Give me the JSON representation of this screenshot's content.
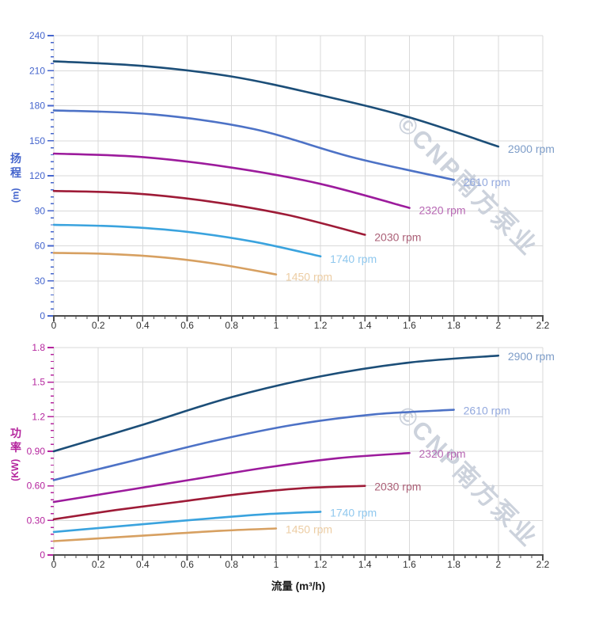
{
  "axes": {
    "flow_title": "流量 (m³/h)",
    "head_char1": "扬",
    "head_char2": "程",
    "head_unit": "(m)",
    "power_char1": "功",
    "power_char2": "率",
    "power_unit": "(KW)"
  },
  "watermark": {
    "text": "©CNP南方泵业"
  },
  "colors": {
    "head_axis": "#4565cd",
    "power_axis": "#b5259e",
    "x_tick_label": "#333333",
    "grid": "#d9d9d9",
    "axis_line": "#4c4c4c",
    "watermark": "#ccd2dc",
    "background": "#ffffff"
  },
  "chart_data": [
    {
      "type": "line",
      "title": "",
      "xlabel": "流量 (m³/h)",
      "ylabel": "扬程 (m)",
      "xlim": [
        0,
        2.2
      ],
      "ylim": [
        0,
        240
      ],
      "grid": true,
      "legend_position": "curve-end-labels",
      "xtick_labels": [
        "0",
        "0.2",
        "0.4",
        "0.6",
        "0.8",
        "1",
        "1.2",
        "1.4",
        "1.6",
        "1.8",
        "2",
        "2.2"
      ],
      "ytick_labels": [
        "0",
        "30",
        "60",
        "90",
        "120",
        "150",
        "180",
        "210",
        "240"
      ],
      "series": [
        {
          "name": "2900 rpm",
          "color": "#1c4e78",
          "label_color": "#7e9dc8",
          "x": [
            0,
            0.4,
            0.8,
            1.2,
            1.6,
            2.0
          ],
          "y": [
            218,
            214,
            205,
            189,
            170,
            145
          ]
        },
        {
          "name": "2610 rpm",
          "color": "#4d72c6",
          "label_color": "#93a9de",
          "x": [
            0,
            0.45,
            0.9,
            1.35,
            1.8
          ],
          "y": [
            176,
            172.5,
            160,
            135.5,
            116.5
          ]
        },
        {
          "name": "2320 rpm",
          "color": "#9c1b9c",
          "label_color": "#b767b3",
          "x": [
            0,
            0.4,
            0.8,
            1.2,
            1.6
          ],
          "y": [
            139,
            136,
            127,
            113,
            92.5
          ]
        },
        {
          "name": "2030 rpm",
          "color": "#9e1b37",
          "label_color": "#ab6077",
          "x": [
            0,
            0.35,
            0.7,
            1.05,
            1.4
          ],
          "y": [
            107,
            105,
            98,
            86.5,
            69.5
          ]
        },
        {
          "name": "1740 rpm",
          "color": "#3aa3de",
          "label_color": "#90c8ee",
          "x": [
            0,
            0.3,
            0.6,
            0.9,
            1.2
          ],
          "y": [
            78,
            76.5,
            72,
            63.5,
            51
          ]
        },
        {
          "name": "1450 rpm",
          "color": "#d7a061",
          "label_color": "#eccda4",
          "x": [
            0,
            0.25,
            0.5,
            0.75,
            1.0
          ],
          "y": [
            54,
            53,
            50,
            44,
            35.5
          ]
        }
      ]
    },
    {
      "type": "line",
      "title": "",
      "xlabel": "流量 (m³/h)",
      "ylabel": "功率 (KW)",
      "xlim": [
        0,
        2.2
      ],
      "ylim": [
        0,
        1.8
      ],
      "grid": true,
      "legend_position": "curve-end-labels",
      "xtick_labels": [
        "0",
        "0.2",
        "0.4",
        "0.6",
        "0.8",
        "1",
        "1.2",
        "1.4",
        "1.6",
        "1.8",
        "2",
        "2.2"
      ],
      "ytick_labels": [
        "0",
        "0.30",
        "0.60",
        "0.90",
        "1.2",
        "1.5",
        "1.8"
      ],
      "series": [
        {
          "name": "2900 rpm",
          "color": "#1c4e78",
          "label_color": "#7e9dc8",
          "x": [
            0,
            0.4,
            0.8,
            1.2,
            1.6,
            2.0
          ],
          "y": [
            0.9,
            1.13,
            1.37,
            1.55,
            1.67,
            1.73
          ]
        },
        {
          "name": "2610 rpm",
          "color": "#4d72c6",
          "label_color": "#93a9de",
          "x": [
            0,
            0.36,
            0.72,
            1.08,
            1.44,
            1.8
          ],
          "y": [
            0.65,
            0.82,
            0.99,
            1.13,
            1.22,
            1.26
          ]
        },
        {
          "name": "2320 rpm",
          "color": "#9c1b9c",
          "label_color": "#b767b3",
          "x": [
            0,
            0.32,
            0.64,
            0.96,
            1.28,
            1.6
          ],
          "y": [
            0.46,
            0.56,
            0.66,
            0.76,
            0.84,
            0.885
          ]
        },
        {
          "name": "2030 rpm",
          "color": "#9e1b37",
          "label_color": "#ab6077",
          "x": [
            0,
            0.28,
            0.56,
            0.84,
            1.12,
            1.4
          ],
          "y": [
            0.31,
            0.39,
            0.46,
            0.53,
            0.58,
            0.6
          ]
        },
        {
          "name": "1740 rpm",
          "color": "#3aa3de",
          "label_color": "#90c8ee",
          "x": [
            0,
            0.24,
            0.48,
            0.72,
            0.96,
            1.2
          ],
          "y": [
            0.2,
            0.24,
            0.28,
            0.32,
            0.355,
            0.375
          ]
        },
        {
          "name": "1450 rpm",
          "color": "#d7a061",
          "label_color": "#eccda4",
          "x": [
            0,
            0.25,
            0.5,
            0.75,
            1.0
          ],
          "y": [
            0.12,
            0.15,
            0.18,
            0.21,
            0.23
          ]
        }
      ]
    }
  ]
}
